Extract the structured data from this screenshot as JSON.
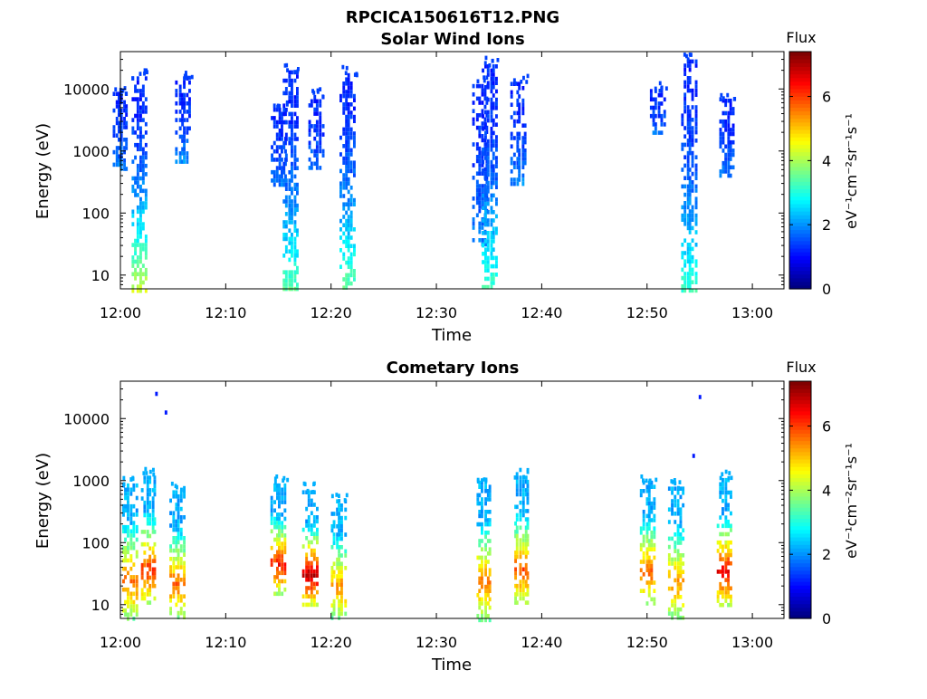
{
  "figure_title": "RPCICA150616T12.PNG",
  "chart_data": [
    {
      "type": "heatmap",
      "title": "Solar Wind Ions",
      "xlabel": "Time",
      "ylabel": "Energy (eV)",
      "xlim": [
        "12:00",
        "13:03"
      ],
      "x_ticks": [
        "12:00",
        "12:10",
        "12:20",
        "12:30",
        "12:40",
        "12:50",
        "13:00"
      ],
      "y_scale": "log",
      "ylim": [
        6,
        40000
      ],
      "y_ticks": [
        "10",
        "100",
        "1000",
        "10000"
      ],
      "colorbar": {
        "title": "Flux",
        "unit": "eV⁻¹cm⁻²sr⁻¹s⁻¹",
        "min": 0,
        "max": 7.4,
        "ticks": [
          "0",
          "2",
          "4",
          "6"
        ],
        "colormap": "jet"
      },
      "bursts": [
        {
          "t": 12.0,
          "elo": 500,
          "ehi": 9000,
          "fmax": 2.0
        },
        {
          "t": 12.03,
          "elo": 6,
          "ehi": 16000,
          "fmax": 4.3
        },
        {
          "t": 12.1,
          "elo": 700,
          "ehi": 16000,
          "fmax": 2.0
        },
        {
          "t": 12.25,
          "elo": 300,
          "ehi": 5000,
          "fmax": 1.8
        },
        {
          "t": 12.27,
          "elo": 6,
          "ehi": 20000,
          "fmax": 3.5
        },
        {
          "t": 12.31,
          "elo": 500,
          "ehi": 8000,
          "fmax": 1.8
        },
        {
          "t": 12.36,
          "elo": 6,
          "ehi": 18000,
          "fmax": 3.6
        },
        {
          "t": 12.57,
          "elo": 30,
          "ehi": 12000,
          "fmax": 1.9
        },
        {
          "t": 12.585,
          "elo": 6,
          "ehi": 25000,
          "fmax": 3.3
        },
        {
          "t": 12.63,
          "elo": 300,
          "ehi": 13000,
          "fmax": 1.9
        },
        {
          "t": 12.85,
          "elo": 2000,
          "ehi": 10000,
          "fmax": 1.8
        },
        {
          "t": 12.9,
          "elo": 6,
          "ehi": 30000,
          "fmax": 3.2
        },
        {
          "t": 12.96,
          "elo": 400,
          "ehi": 7000,
          "fmax": 1.8
        }
      ]
    },
    {
      "type": "heatmap",
      "title": "Cometary Ions",
      "xlabel": "Time",
      "ylabel": "Energy (eV)",
      "xlim": [
        "12:00",
        "13:03"
      ],
      "x_ticks": [
        "12:00",
        "12:10",
        "12:20",
        "12:30",
        "12:40",
        "12:50",
        "13:00"
      ],
      "y_scale": "log",
      "ylim": [
        6,
        40000
      ],
      "y_ticks": [
        "10",
        "100",
        "1000",
        "10000"
      ],
      "colorbar": {
        "title": "Flux",
        "unit": "eV⁻¹cm⁻²sr⁻¹s⁻¹",
        "min": 0,
        "max": 7.4,
        "ticks": [
          "0",
          "2",
          "4",
          "6"
        ],
        "colormap": "jet"
      },
      "bursts": [
        {
          "t": 12.015,
          "elo": 6,
          "ehi": 900,
          "fmax": 5.8
        },
        {
          "t": 12.045,
          "elo": 10,
          "ehi": 1200,
          "fmax": 6.2
        },
        {
          "t": 12.09,
          "elo": 6,
          "ehi": 700,
          "fmax": 5.8
        },
        {
          "t": 12.25,
          "elo": 15,
          "ehi": 900,
          "fmax": 6.4
        },
        {
          "t": 12.3,
          "elo": 10,
          "ehi": 700,
          "fmax": 7.0
        },
        {
          "t": 12.345,
          "elo": 6,
          "ehi": 500,
          "fmax": 5.5
        },
        {
          "t": 12.575,
          "elo": 6,
          "ehi": 1000,
          "fmax": 5.6
        },
        {
          "t": 12.635,
          "elo": 10,
          "ehi": 1200,
          "fmax": 6.0
        },
        {
          "t": 12.835,
          "elo": 10,
          "ehi": 1000,
          "fmax": 5.8
        },
        {
          "t": 12.88,
          "elo": 6,
          "ehi": 800,
          "fmax": 5.5
        },
        {
          "t": 12.955,
          "elo": 10,
          "ehi": 1100,
          "fmax": 6.6
        }
      ],
      "outliers": [
        {
          "t": 12.055,
          "e": 27000
        },
        {
          "t": 12.07,
          "e": 13500
        },
        {
          "t": 12.915,
          "e": 24000
        },
        {
          "t": 12.905,
          "e": 2700
        }
      ]
    }
  ]
}
